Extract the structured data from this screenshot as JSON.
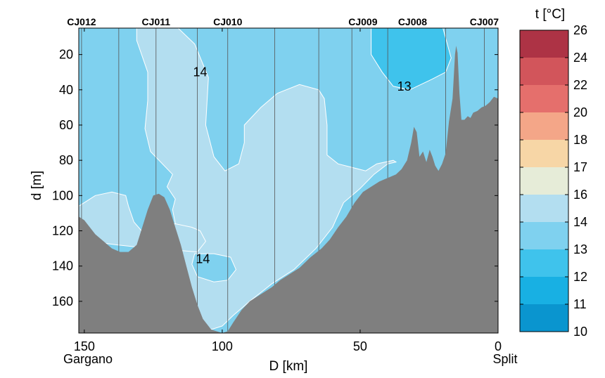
{
  "chart_data": {
    "type": "contour",
    "xlabel": "D [km]",
    "ylabel": "d [m]",
    "colorbar_label": "t [°C]",
    "x_reversed": true,
    "xlim": [
      152,
      0
    ],
    "ylim": [
      178,
      5
    ],
    "x_ticks": [
      150,
      100,
      50,
      0
    ],
    "y_ticks": [
      20,
      40,
      60,
      80,
      100,
      120,
      140,
      160
    ],
    "end_labels": {
      "left": "Gargano",
      "right": "Split"
    },
    "stations": [
      {
        "name": "CJ012",
        "x": 151
      },
      {
        "name": "CJ011",
        "x": 124
      },
      {
        "name": "CJ010",
        "x": 98
      },
      {
        "name": "CJ009",
        "x": 49
      },
      {
        "name": "CJ008",
        "x": 31
      },
      {
        "name": "CJ007",
        "x": 5
      }
    ],
    "cast_lines_x": [
      151,
      137.5,
      124,
      109,
      98,
      81,
      65,
      53,
      40,
      19,
      5
    ],
    "contour_labels": [
      {
        "text": "14",
        "x": 108,
        "y": 30
      },
      {
        "text": "13",
        "x": 34,
        "y": 38
      },
      {
        "text": "14",
        "x": 107,
        "y": 136
      }
    ],
    "colorbar": {
      "levels": [
        10,
        11,
        12,
        13,
        14,
        16,
        17,
        18,
        20,
        22,
        24,
        26
      ],
      "tick_labels": [
        "10",
        "11",
        "12",
        "13",
        "14",
        "16",
        "17",
        "18",
        "20",
        "22",
        "24",
        "26"
      ],
      "colors": [
        "#0a95cf",
        "#18b0e3",
        "#3fc3ec",
        "#7fd1ef",
        "#b3def0",
        "#e6ecd8",
        "#f7d6a6",
        "#f4a688",
        "#e56f6c",
        "#d2555b",
        "#ad3345"
      ]
    },
    "regions": [
      {
        "band": "13-14",
        "color": "#7fd1ef",
        "points": [
          [
            152,
            5
          ],
          [
            0,
            5
          ],
          [
            0,
            178
          ],
          [
            152,
            178
          ]
        ]
      },
      {
        "band": "14-16",
        "color": "#b3def0",
        "points": [
          [
            131,
            5
          ],
          [
            116,
            5
          ],
          [
            110,
            14
          ],
          [
            105,
            33
          ],
          [
            106,
            60
          ],
          [
            103,
            78
          ],
          [
            99,
            86
          ],
          [
            94,
            82
          ],
          [
            92,
            70
          ],
          [
            92,
            60
          ],
          [
            86,
            50
          ],
          [
            80,
            42
          ],
          [
            72,
            37
          ],
          [
            65,
            40
          ],
          [
            63,
            45
          ],
          [
            62,
            60
          ],
          [
            62,
            77
          ],
          [
            58,
            82
          ],
          [
            48,
            86
          ],
          [
            44,
            82
          ],
          [
            38,
            80
          ],
          [
            37,
            81
          ],
          [
            40,
            82
          ],
          [
            45,
            88
          ],
          [
            50,
            96
          ],
          [
            56,
            104
          ],
          [
            60,
            118
          ],
          [
            66,
            130
          ],
          [
            74,
            142
          ],
          [
            82,
            150
          ],
          [
            90,
            160
          ],
          [
            96,
            168
          ],
          [
            100,
            174
          ],
          [
            104,
            176
          ],
          [
            108,
            173
          ],
          [
            110,
            170
          ],
          [
            112,
            160
          ],
          [
            114,
            145
          ],
          [
            116,
            124
          ],
          [
            118,
            108
          ],
          [
            117,
            102
          ],
          [
            120,
            95
          ],
          [
            118,
            88
          ],
          [
            126,
            75
          ],
          [
            128,
            62
          ],
          [
            127,
            46
          ],
          [
            127,
            30
          ],
          [
            131,
            12
          ]
        ]
      },
      {
        "band": "14-16",
        "color": "#b3def0",
        "points": [
          [
            152,
            106
          ],
          [
            146,
            100
          ],
          [
            140,
            98
          ],
          [
            135,
            100
          ],
          [
            134,
            106
          ],
          [
            132,
            115
          ],
          [
            127,
            124
          ],
          [
            126,
            130
          ],
          [
            138,
            128
          ],
          [
            148,
            126
          ],
          [
            152,
            124
          ]
        ]
      },
      {
        "band": "14-16",
        "color": "#b3def0",
        "points": [
          [
            128,
            117
          ],
          [
            117,
            116
          ],
          [
            111,
            118
          ],
          [
            108,
            120
          ],
          [
            106,
            126
          ],
          [
            109,
            132
          ],
          [
            124,
            130
          ],
          [
            128,
            125
          ]
        ]
      },
      {
        "band": "13-14",
        "color": "#7fd1ef",
        "points": [
          [
            110,
            133
          ],
          [
            103,
            133
          ],
          [
            97,
            135
          ],
          [
            95,
            142
          ],
          [
            98,
            148
          ],
          [
            103,
            149
          ],
          [
            109,
            146
          ],
          [
            111,
            139
          ]
        ]
      },
      {
        "band": "12-13",
        "color": "#3fc3ec",
        "points": [
          [
            46,
            5
          ],
          [
            20,
            5
          ],
          [
            17,
            22
          ],
          [
            19,
            30
          ],
          [
            24,
            34
          ],
          [
            32,
            40
          ],
          [
            38,
            38
          ],
          [
            42,
            30
          ],
          [
            46,
            20
          ]
        ]
      }
    ],
    "bathymetry": [
      [
        152,
        112
      ],
      [
        150,
        114
      ],
      [
        148,
        118
      ],
      [
        146,
        122
      ],
      [
        143,
        126
      ],
      [
        140,
        130
      ],
      [
        137,
        132
      ],
      [
        134,
        132
      ],
      [
        131,
        128
      ],
      [
        129,
        118
      ],
      [
        127,
        108
      ],
      [
        125,
        100
      ],
      [
        123,
        99
      ],
      [
        121,
        101
      ],
      [
        119,
        108
      ],
      [
        117,
        118
      ],
      [
        115,
        128
      ],
      [
        113,
        140
      ],
      [
        111,
        152
      ],
      [
        109,
        162
      ],
      [
        107,
        170
      ],
      [
        104,
        176
      ],
      [
        100,
        178
      ],
      [
        98,
        177
      ],
      [
        96,
        172
      ],
      [
        93,
        165
      ],
      [
        90,
        160
      ],
      [
        86,
        156
      ],
      [
        82,
        152
      ],
      [
        79,
        148
      ],
      [
        75,
        144
      ],
      [
        72,
        141
      ],
      [
        68,
        135
      ],
      [
        64,
        130
      ],
      [
        61,
        125
      ],
      [
        58,
        118
      ],
      [
        55,
        112
      ],
      [
        52,
        104
      ],
      [
        49,
        98
      ],
      [
        46,
        95
      ],
      [
        43,
        92
      ],
      [
        40,
        90
      ],
      [
        37,
        88
      ],
      [
        35,
        85
      ],
      [
        33,
        80
      ],
      [
        31.5,
        70
      ],
      [
        30.5,
        61
      ],
      [
        29.5,
        64
      ],
      [
        28.5,
        78
      ],
      [
        27.2,
        75
      ],
      [
        26,
        81
      ],
      [
        24.8,
        74
      ],
      [
        23.8,
        78
      ],
      [
        22.8,
        83
      ],
      [
        21.6,
        86
      ],
      [
        20.3,
        82
      ],
      [
        19,
        76
      ],
      [
        17.8,
        58
      ],
      [
        16.5,
        45
      ],
      [
        15.6,
        20
      ],
      [
        15.2,
        15
      ],
      [
        14.7,
        19
      ],
      [
        14,
        42
      ],
      [
        13.3,
        57
      ],
      [
        12.2,
        57
      ],
      [
        11,
        55
      ],
      [
        10,
        56
      ],
      [
        9,
        53
      ],
      [
        7.5,
        52
      ],
      [
        6,
        50
      ],
      [
        4.5,
        49
      ],
      [
        3,
        47
      ],
      [
        1.5,
        44
      ],
      [
        0,
        45
      ]
    ]
  }
}
